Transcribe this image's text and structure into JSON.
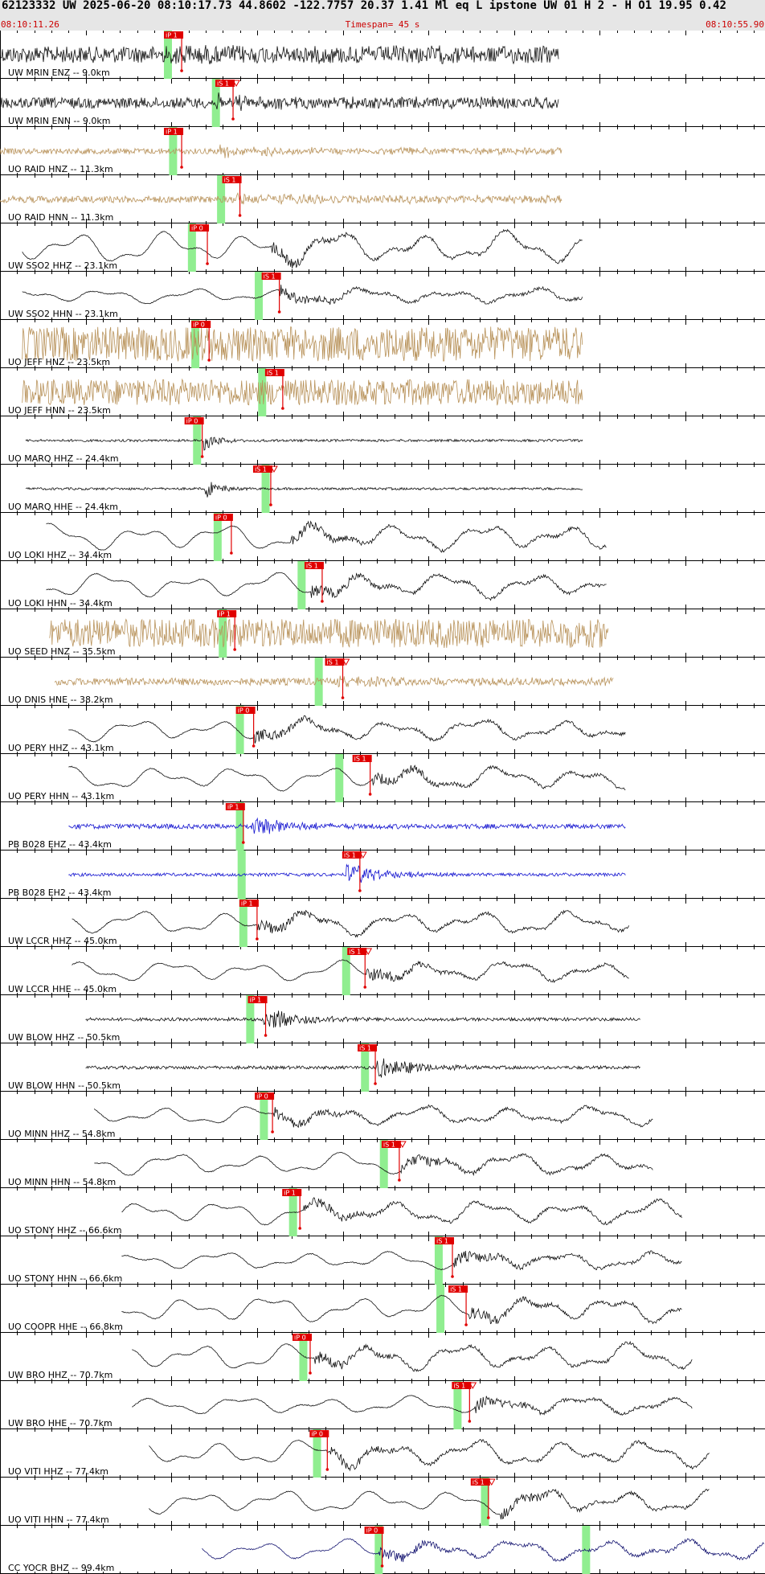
{
  "header": {
    "title": "62123332 UW 2025-06-20 08:10:17.73   44.8602 -122.7757  20.37  1.41 Ml  eq  L ipstone  UW 01  H   2  -  H O1   19.95  0.42",
    "start_time": "08:10:11.26",
    "timespan": "Timespan=  45 s",
    "end_time": "08:10:55.90"
  },
  "colors": {
    "header_bg": "#e6e6e6",
    "header_text": "#cc0000",
    "title_text": "#000000",
    "pick_flag": "#e00000",
    "pred_window": "#90ee90",
    "trace_black": "#111111",
    "trace_tan": "#b8925a",
    "trace_blue": "#1515d0",
    "trace_navy": "#141470"
  },
  "chart_data": {
    "type": "line",
    "title": "62123332 UW 2025-06-20 08:10:17.73",
    "x_unit": "seconds from 08:10:11.26",
    "xlim": [
      0,
      44.64
    ],
    "tick_interval_s": 1,
    "pick_positions_note": "pick and window times in seconds from 08:10:11.26",
    "traces": [
      {
        "label": "UW MRIN ENZ -- 9.0km",
        "color": "black",
        "amp": 17,
        "style": "hf",
        "trace_start_s": 0,
        "trace_end_s": 32.6,
        "onset_s": 9.6,
        "pick": {
          "label": "iP 1",
          "t_s": 10.6
        },
        "window_s": 9.8,
        "tri": false
      },
      {
        "label": "UW MRIN ENN -- 9.0km",
        "color": "black",
        "amp": 11,
        "style": "hf",
        "trace_start_s": 0,
        "trace_end_s": 32.6,
        "onset_s": 12.5,
        "pick": {
          "label": "iS 1",
          "t_s": 13.6
        },
        "window_s": 12.6,
        "tri": true
      },
      {
        "label": "UO RAID HNZ -- 11.3km",
        "color": "tan",
        "amp": 6,
        "style": "hf",
        "trace_start_s": 0,
        "trace_end_s": 32.8,
        "onset_s": 12.8,
        "pick": {
          "label": "iP 1",
          "t_s": 10.6
        },
        "window_s": 10.1,
        "tri": false
      },
      {
        "label": "UO RAID HNN -- 11.3km",
        "color": "tan",
        "amp": 7,
        "style": "hf",
        "trace_start_s": 0,
        "trace_end_s": 32.8,
        "onset_s": 13.8,
        "pick": {
          "label": "iS 1",
          "t_s": 14.0
        },
        "window_s": 12.9,
        "tri": false
      },
      {
        "label": "UW SSO2 HHZ -- 23.1km",
        "color": "black",
        "amp": 22,
        "style": "lp",
        "trace_start_s": 1.3,
        "trace_end_s": 34.0,
        "onset_s": 15.8,
        "pick": {
          "label": "iP 0",
          "t_s": 12.1
        },
        "window_s": 11.2,
        "tri": false
      },
      {
        "label": "UW SSO2 HHN -- 23.1km",
        "color": "black",
        "amp": 10,
        "style": "lp",
        "trace_start_s": 1.3,
        "trace_end_s": 34.0,
        "onset_s": 16.3,
        "pick": {
          "label": "iS 1",
          "t_s": 16.3
        },
        "window_s": 15.1,
        "tri": false
      },
      {
        "label": "UO JEFF HNZ -- 23.5km",
        "color": "tan",
        "amp": 24,
        "style": "band",
        "trace_start_s": 1.3,
        "trace_end_s": 34.0,
        "onset_s": 99,
        "pick": {
          "label": "iP 0",
          "t_s": 12.2
        },
        "window_s": 11.4,
        "tri": false
      },
      {
        "label": "UO JEFF HNN -- 23.5km",
        "color": "tan",
        "amp": 18,
        "style": "band",
        "trace_start_s": 1.3,
        "trace_end_s": 34.0,
        "onset_s": 99,
        "pick": {
          "label": "iS 1",
          "t_s": 16.5
        },
        "window_s": 15.3,
        "tri": false
      },
      {
        "label": "UO MARQ HHZ -- 24.4km",
        "color": "black",
        "amp": 3,
        "style": "spike",
        "trace_start_s": 1.5,
        "trace_end_s": 34.0,
        "onset_s": 11.9,
        "pick": {
          "label": "iP 0",
          "t_s": 11.8
        },
        "window_s": 11.5,
        "tri": false
      },
      {
        "label": "UO MARQ HHE -- 24.4km",
        "color": "black",
        "amp": 3,
        "style": "spike",
        "trace_start_s": 1.5,
        "trace_end_s": 34.0,
        "onset_s": 11.9,
        "pick": {
          "label": "iS 1",
          "t_s": 15.8
        },
        "window_s": 15.5,
        "tri": true
      },
      {
        "label": "UO LOKI HHZ -- 34.4km",
        "color": "black",
        "amp": 18,
        "style": "lp",
        "trace_start_s": 2.7,
        "trace_end_s": 35.4,
        "onset_s": 17.0,
        "pick": {
          "label": "iP 0",
          "t_s": 13.5
        },
        "window_s": 12.7,
        "tri": false
      },
      {
        "label": "UO LOKI HHN -- 34.4km",
        "color": "black",
        "amp": 17,
        "style": "lp",
        "trace_start_s": 2.7,
        "trace_end_s": 35.4,
        "onset_s": 18.1,
        "pick": {
          "label": "iS 1",
          "t_s": 18.8
        },
        "window_s": 17.6,
        "tri": false
      },
      {
        "label": "UO SEED HNZ -- 35.5km",
        "color": "tan",
        "amp": 20,
        "style": "band",
        "trace_start_s": 2.9,
        "trace_end_s": 35.5,
        "onset_s": 99,
        "pick": {
          "label": "iP 1",
          "t_s": 13.7
        },
        "window_s": 13.0,
        "tri": false
      },
      {
        "label": "UO DNIS HNE -- 38.2km",
        "color": "tan",
        "amp": 5,
        "style": "band",
        "trace_start_s": 3.2,
        "trace_end_s": 35.8,
        "onset_s": 19.7,
        "pick": {
          "label": "iS 1",
          "t_s": 20.0
        },
        "window_s": 18.6,
        "tri": true
      },
      {
        "label": "UO PERY HHZ -- 43.1km",
        "color": "black",
        "amp": 15,
        "style": "lp",
        "trace_start_s": 4.0,
        "trace_end_s": 36.5,
        "onset_s": 14.8,
        "pick": {
          "label": "iP 0",
          "t_s": 14.8
        },
        "window_s": 14.0,
        "tri": false
      },
      {
        "label": "UO PERY HHN -- 43.1km",
        "color": "black",
        "amp": 16,
        "style": "lp",
        "trace_start_s": 4.0,
        "trace_end_s": 36.5,
        "onset_s": 21.7,
        "pick": {
          "label": "iS 1",
          "t_s": 21.6
        },
        "window_s": 19.8,
        "tri": false
      },
      {
        "label": "PB B028 EHZ -- 43.4km",
        "color": "blue",
        "amp": 3,
        "style": "quake",
        "trace_start_s": 4.0,
        "trace_end_s": 36.5,
        "onset_s": 14.6,
        "pick": {
          "label": "iP 1",
          "t_s": 14.2
        },
        "window_s": 14.0,
        "tri": false
      },
      {
        "label": "PB B028 EH2 -- 43.4km",
        "color": "blue",
        "amp": 2,
        "style": "quake",
        "trace_start_s": 4.0,
        "trace_end_s": 36.5,
        "onset_s": 20.2,
        "pick": {
          "label": "iS 1",
          "t_s": 21.0
        },
        "window_s": 14.1,
        "tri": true
      },
      {
        "label": "UW LCCR HHZ -- 45.0km",
        "color": "black",
        "amp": 16,
        "style": "lp",
        "trace_start_s": 4.2,
        "trace_end_s": 36.7,
        "onset_s": 15.0,
        "pick": {
          "label": "iP 1",
          "t_s": 15.0
        },
        "window_s": 14.2,
        "tri": false
      },
      {
        "label": "UW LCCR HHE -- 45.0km",
        "color": "black",
        "amp": 14,
        "style": "lp",
        "trace_start_s": 4.2,
        "trace_end_s": 36.7,
        "onset_s": 21.4,
        "pick": {
          "label": "iS 1",
          "t_s": 21.3
        },
        "window_s": 20.2,
        "tri": true
      },
      {
        "label": "UW BLOW HHZ -- 50.5km",
        "color": "black",
        "amp": 2,
        "style": "quake",
        "trace_start_s": 5.0,
        "trace_end_s": 37.4,
        "onset_s": 15.4,
        "pick": {
          "label": "iP 1",
          "t_s": 15.5
        },
        "window_s": 14.6,
        "tri": false
      },
      {
        "label": "UW BLOW HHN -- 50.5km",
        "color": "black",
        "amp": 2,
        "style": "quake",
        "trace_start_s": 5.0,
        "trace_end_s": 37.4,
        "onset_s": 22.0,
        "pick": {
          "label": "iS 1",
          "t_s": 21.9
        },
        "window_s": 21.3,
        "tri": false
      },
      {
        "label": "UO MINN HHZ -- 54.8km",
        "color": "black",
        "amp": 13,
        "style": "lp",
        "trace_start_s": 5.5,
        "trace_end_s": 38.1,
        "onset_s": 16.0,
        "pick": {
          "label": "iP 0",
          "t_s": 15.9
        },
        "window_s": 15.4,
        "tri": false
      },
      {
        "label": "UO MINN HHN -- 54.8km",
        "color": "black",
        "amp": 15,
        "style": "lp",
        "trace_start_s": 5.5,
        "trace_end_s": 38.1,
        "onset_s": 23.4,
        "pick": {
          "label": "iS 1",
          "t_s": 23.3
        },
        "window_s": 22.4,
        "tri": true
      },
      {
        "label": "UO STONY HHZ -- 66.6km",
        "color": "black",
        "amp": 16,
        "style": "lp",
        "trace_start_s": 7.1,
        "trace_end_s": 39.8,
        "onset_s": 17.7,
        "pick": {
          "label": "iP 1",
          "t_s": 17.5
        },
        "window_s": 17.1,
        "tri": false
      },
      {
        "label": "UO STONY HHN -- 66.6km",
        "color": "black",
        "amp": 12,
        "style": "lp",
        "trace_start_s": 7.1,
        "trace_end_s": 39.8,
        "onset_s": 26.5,
        "pick": {
          "label": "iS 1",
          "t_s": 26.4
        },
        "window_s": 25.6,
        "tri": false
      },
      {
        "label": "UO COOPR HHE -- 66.8km",
        "color": "black",
        "amp": 18,
        "style": "lp",
        "trace_start_s": 7.1,
        "trace_end_s": 39.8,
        "onset_s": 27.3,
        "pick": {
          "label": "iS 1",
          "t_s": 27.2
        },
        "window_s": 25.7,
        "tri": false
      },
      {
        "label": "UW BRO HHZ -- 70.7km",
        "color": "black",
        "amp": 18,
        "style": "lp",
        "trace_start_s": 7.7,
        "trace_end_s": 40.4,
        "onset_s": 18.3,
        "pick": {
          "label": "iP 0",
          "t_s": 18.1
        },
        "window_s": 17.7,
        "tri": false
      },
      {
        "label": "UW BRO HHE -- 70.7km",
        "color": "black",
        "amp": 12,
        "style": "lp",
        "trace_start_s": 7.7,
        "trace_end_s": 40.4,
        "onset_s": 27.7,
        "pick": {
          "label": "iS 1",
          "t_s": 27.4
        },
        "window_s": 26.7,
        "tri": true
      },
      {
        "label": "UO VITI HHZ -- 77.4km",
        "color": "black",
        "amp": 18,
        "style": "lp",
        "trace_start_s": 8.7,
        "trace_end_s": 41.4,
        "onset_s": 19.1,
        "pick": {
          "label": "iP 0",
          "t_s": 19.1
        },
        "window_s": 18.5,
        "tri": false
      },
      {
        "label": "UO VITI HHN -- 77.4km",
        "color": "black",
        "amp": 16,
        "style": "lp",
        "trace_start_s": 8.7,
        "trace_end_s": 41.4,
        "onset_s": 29.2,
        "pick": {
          "label": "iS 1",
          "t_s": 28.5
        },
        "window_s": 28.3,
        "tri": true
      },
      {
        "label": "CC YOCR BHZ -- 99.4km",
        "color": "navy",
        "amp": 14,
        "style": "lp",
        "trace_start_s": 11.8,
        "trace_end_s": 44.6,
        "onset_s": 22.1,
        "pick": {
          "label": "iP 0",
          "t_s": 22.3
        },
        "window_s": 22.1,
        "tri": false,
        "window2_s": 34.2
      }
    ]
  }
}
